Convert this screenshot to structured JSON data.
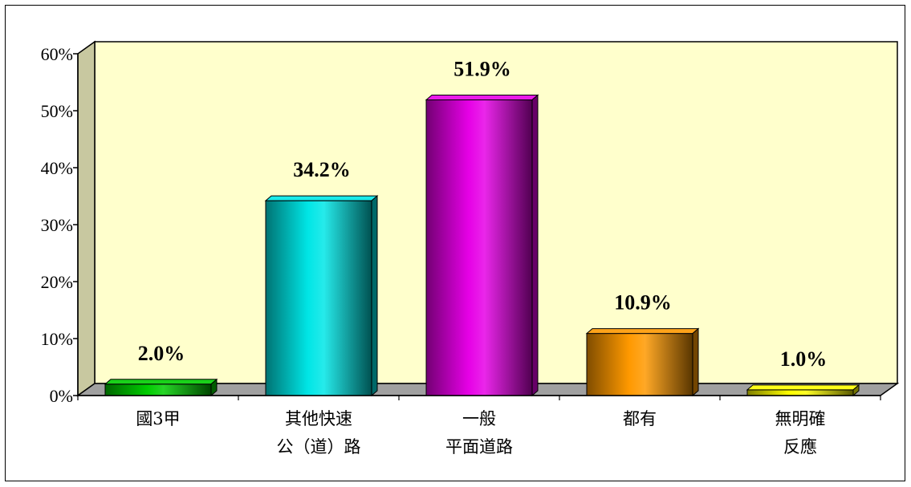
{
  "chart_data": {
    "type": "bar",
    "categories": [
      [
        "國3甲"
      ],
      [
        "其他快速",
        "公（道）路"
      ],
      [
        "一般",
        "平面道路"
      ],
      [
        "都有"
      ],
      [
        "無明確",
        "反應"
      ]
    ],
    "values": [
      2.0,
      34.2,
      51.9,
      10.9,
      1.0
    ],
    "data_labels": [
      "2.0%",
      "34.2%",
      "51.9%",
      "10.9%",
      "1.0%"
    ],
    "yticks": [
      "0%",
      "10%",
      "20%",
      "30%",
      "40%",
      "50%",
      "60%"
    ],
    "ylim": [
      0,
      60
    ],
    "grid": false,
    "legend": "none",
    "bar_colors": [
      "#00cc00",
      "#00e6e6",
      "#e600e6",
      "#ff9900",
      "#ffff00"
    ],
    "plot_background": "#ffffcc"
  }
}
